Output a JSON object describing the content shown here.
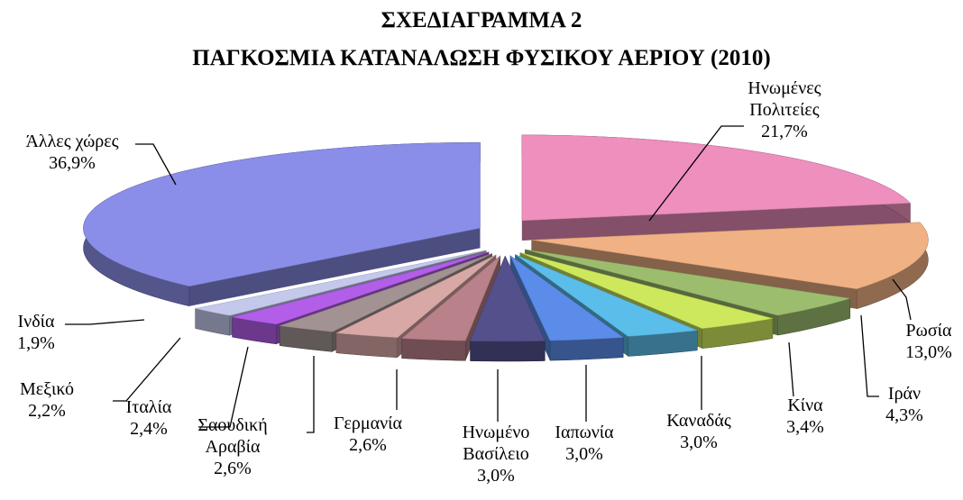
{
  "chart_data": {
    "type": "pie",
    "title": "ΣΧΕΔΙΑΓΡΑΜΜΑ 2",
    "subtitle": "ΠΑΓΚΟΣΜΙΑ ΚΑΤΑΝΑΛΩΣΗ ΦΥΣΙΚΟΥ ΑΕΡΙΟΥ (2010)",
    "categories": [
      "Ηνωμένες Πολιτείες",
      "Ρωσία",
      "Ιράν",
      "Κίνα",
      "Καναδάς",
      "Ιαπωνία",
      "Ηνωμένο Βασίλειο",
      "Γερμανία",
      "Σαουδική Αραβία",
      "Ιταλία",
      "Μεξικό",
      "Ινδία",
      "Άλλες χώρες"
    ],
    "values": [
      21.7,
      13.0,
      4.3,
      3.4,
      3.0,
      3.0,
      3.0,
      2.6,
      2.6,
      2.4,
      2.2,
      1.9,
      36.9
    ],
    "value_labels": [
      "21,7%",
      "13,0%",
      "4,3%",
      "3,4%",
      "3,0%",
      "3,0%",
      "3,0%",
      "2,6%",
      "2,6%",
      "2,4%",
      "2,2%",
      "1,9%",
      "36,9%"
    ],
    "colors": [
      "#ee8fbe",
      "#f0b184",
      "#9dbd6e",
      "#cde85c",
      "#5bbde9",
      "#5b8ce9",
      "#54508c",
      "#b98189",
      "#d8a8a6",
      "#a29292",
      "#b25ee9",
      "#c4c9ec",
      "#8a8ee8"
    ]
  }
}
